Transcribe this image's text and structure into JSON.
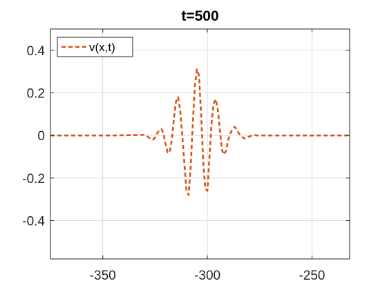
{
  "chart_data": {
    "type": "line",
    "title": "t=500",
    "xlabel": "",
    "ylabel": "",
    "xlim": [
      -375,
      -232
    ],
    "ylim": [
      -0.58,
      0.5
    ],
    "xticks": [
      -350,
      -300,
      -250
    ],
    "yticks": [
      0.4,
      0.2,
      0,
      -0.2,
      -0.4
    ],
    "xtick_labels": [
      "-350",
      "-300",
      "-250"
    ],
    "ytick_labels": [
      "0.4",
      "0.2",
      "0",
      "-0.2",
      "-0.4"
    ],
    "grid": true,
    "legend": {
      "location": "top-left",
      "entries": [
        "v(x,t)"
      ]
    },
    "series": [
      {
        "name": "v(x,t)",
        "color": "#D95319",
        "line_style": "dashed",
        "x": [
          -375,
          -345,
          -335,
          -330,
          -328,
          -326,
          -325,
          -324,
          -323,
          -322,
          -321,
          -320,
          -319,
          -318,
          -317,
          -316,
          -315,
          -314,
          -313,
          -312,
          -311,
          -310,
          -309,
          -308,
          -307,
          -306,
          -305,
          -304,
          -303,
          -302,
          -301,
          -300,
          -299,
          -298,
          -297,
          -296,
          -295,
          -294,
          -293,
          -292,
          -291,
          -290,
          -289,
          -288,
          -287,
          -286,
          -285,
          -284,
          -283,
          -282,
          -281,
          -280,
          -278,
          -276,
          -272,
          -265,
          -250,
          -232
        ],
        "y": [
          0,
          0,
          0.002,
          0.003,
          -0.01,
          -0.02,
          -0.01,
          0.01,
          0.025,
          0.03,
          0.01,
          -0.04,
          -0.08,
          -0.08,
          -0.02,
          0.08,
          0.16,
          0.18,
          0.12,
          0,
          -0.13,
          -0.26,
          -0.28,
          -0.15,
          0.05,
          0.23,
          0.31,
          0.28,
          0.1,
          -0.12,
          -0.25,
          -0.26,
          -0.1,
          0.06,
          0.15,
          0.17,
          0.12,
          0.02,
          -0.07,
          -0.09,
          -0.07,
          -0.02,
          0.01,
          0.03,
          0.04,
          0.03,
          0.01,
          0,
          -0.01,
          -0.015,
          -0.01,
          -0.005,
          0.002,
          0,
          0,
          0,
          0,
          0
        ]
      }
    ]
  }
}
